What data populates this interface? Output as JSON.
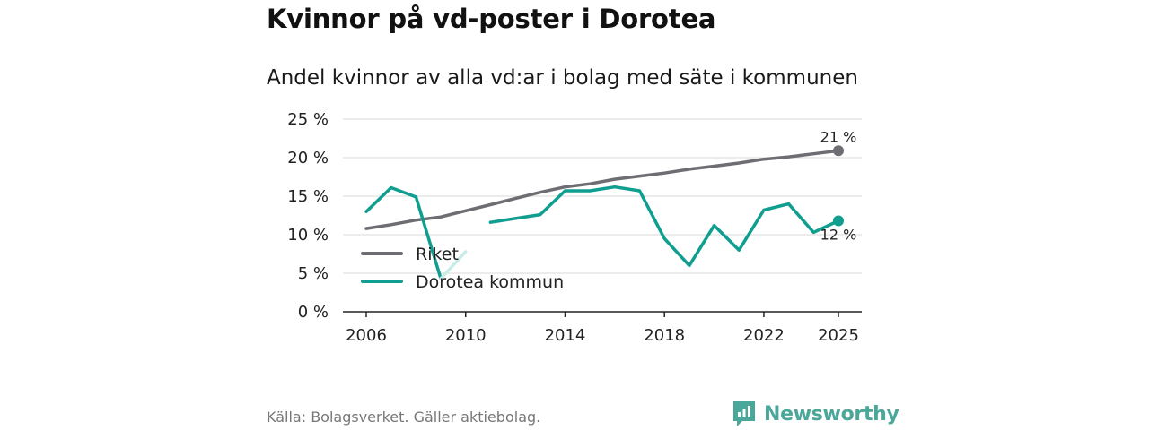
{
  "title": "Kvinnor på vd-poster i Dorotea",
  "subtitle": "Andel kvinnor av alla vd:ar i bolag med säte i kommunen",
  "source": "Källa: Bolagsverket. Gäller aktiebolag.",
  "brand": "Newsworthy",
  "chart_data": {
    "type": "line",
    "title": "Kvinnor på vd-poster i Dorotea",
    "subtitle": "Andel kvinnor av alla vd:ar i bolag med säte i kommunen",
    "xlabel": "",
    "ylabel": "",
    "x": [
      2006,
      2007,
      2008,
      2009,
      2010,
      2011,
      2012,
      2013,
      2014,
      2015,
      2016,
      2017,
      2018,
      2019,
      2020,
      2021,
      2022,
      2023,
      2024,
      2025
    ],
    "xlim": [
      2006,
      2025
    ],
    "x_ticks": [
      2006,
      2010,
      2014,
      2018,
      2022,
      2025
    ],
    "ylim": [
      0,
      25
    ],
    "y_ticks": [
      0,
      5,
      10,
      15,
      20,
      25
    ],
    "y_tick_labels": [
      "0 %",
      "5 %",
      "10 %",
      "15 %",
      "20 %",
      "25 %"
    ],
    "grid": true,
    "legend_position": "bottom-left",
    "series": [
      {
        "name": "Riket",
        "color": "#6e6d73",
        "values": [
          10.8,
          11.3,
          11.9,
          12.3,
          13.1,
          13.9,
          14.7,
          15.5,
          16.2,
          16.6,
          17.2,
          17.6,
          18.0,
          18.5,
          18.9,
          19.3,
          19.8,
          20.1,
          20.5,
          20.9
        ],
        "end_label": "21 %"
      },
      {
        "name": "Dorotea kommun",
        "color": "#0f9e8f",
        "highlight_color": "#c8ece7",
        "highlight_segments": [
          [
            2009,
            2010
          ]
        ],
        "values": [
          13.0,
          16.1,
          14.9,
          4.3,
          7.8,
          11.6,
          12.1,
          12.6,
          15.7,
          15.7,
          16.2,
          15.7,
          9.5,
          6.0,
          11.2,
          8.0,
          13.2,
          14.0,
          10.3,
          11.8
        ],
        "end_label": "12 %"
      }
    ]
  }
}
